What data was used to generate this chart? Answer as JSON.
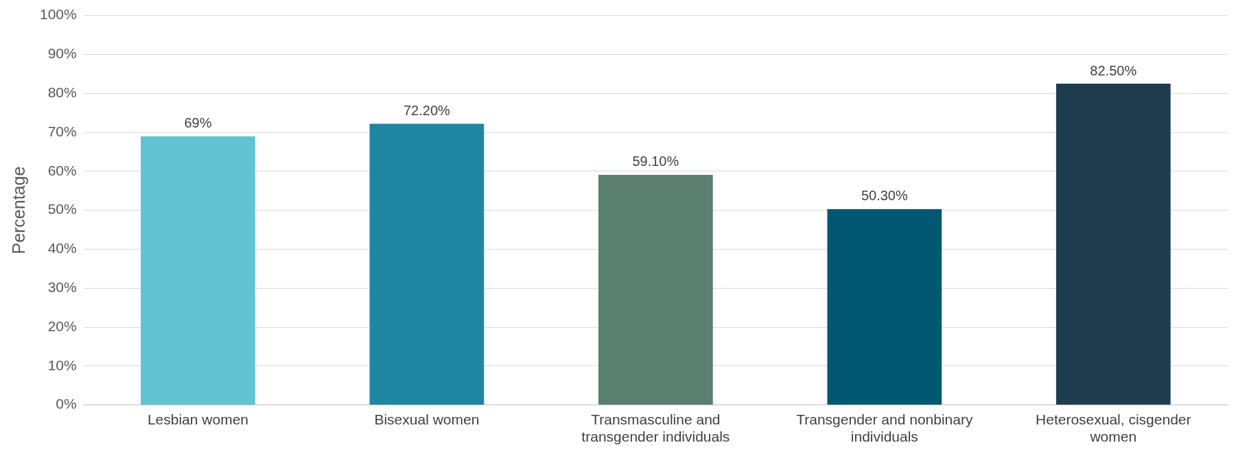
{
  "chart_data": {
    "type": "bar",
    "ylabel": "Percentage",
    "categories": [
      "Lesbian women",
      "Bisexual women",
      "Transmasculine and transgender individuals",
      "Transgender and nonbinary individuals",
      "Heterosexual, cisgender women"
    ],
    "values": [
      69,
      72.2,
      59.1,
      50.3,
      82.5
    ],
    "colors": [
      "#62c3d3",
      "#1f86a2",
      "#5a7f70",
      "#005872",
      "#1f3c4e"
    ],
    "value_labels": [
      "69%",
      "72.20%",
      "59.10%",
      "50.30%",
      "82.50%"
    ],
    "ylim": [
      0,
      100
    ],
    "yticks": [
      {
        "value": 0,
        "label": "0%"
      },
      {
        "value": 10,
        "label": "10%"
      },
      {
        "value": 20,
        "label": "20%"
      },
      {
        "value": 30,
        "label": "30%"
      },
      {
        "value": 40,
        "label": "40%"
      },
      {
        "value": 50,
        "label": "50%"
      },
      {
        "value": 60,
        "label": "60%"
      },
      {
        "value": 70,
        "label": "70%"
      },
      {
        "value": 80,
        "label": "80%"
      },
      {
        "value": 90,
        "label": "90%"
      },
      {
        "value": 100,
        "label": "100%"
      }
    ],
    "grid": "y"
  }
}
